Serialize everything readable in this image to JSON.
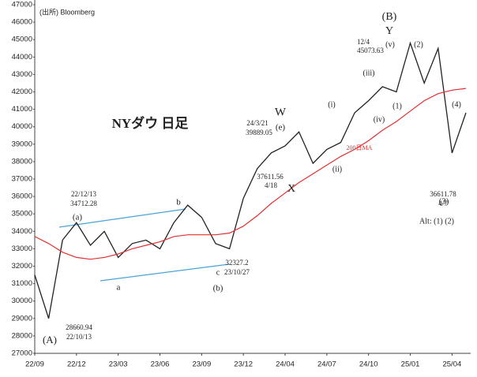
{
  "chart_data": {
    "type": "line",
    "title": "NYダウ 日足",
    "source": "(出所) Bloomberg",
    "categories": [
      "22/09",
      null,
      null,
      "22/12",
      null,
      null,
      "23/03",
      null,
      null,
      "23/06",
      null,
      null,
      "23/09",
      null,
      null,
      "23/12",
      null,
      null,
      "24/04",
      null,
      null,
      "24/07",
      null,
      null,
      "24/10",
      null,
      null,
      "25/01",
      null,
      null,
      "25/04",
      null
    ],
    "series": [
      {
        "name": "NYダウ",
        "color": "#222222",
        "values": [
          31500,
          29000,
          33500,
          34500,
          33200,
          34000,
          32500,
          33300,
          33500,
          33000,
          34500,
          35500,
          34800,
          33300,
          33000,
          35900,
          37600,
          38500,
          38900,
          39700,
          37900,
          38700,
          39100,
          40800,
          41500,
          42300,
          42000,
          44800,
          42500,
          44500,
          38500,
          40800
        ]
      },
      {
        "name": "200日MA",
        "color": "#e03030",
        "values": [
          33700,
          33300,
          32800,
          32500,
          32400,
          32500,
          32700,
          33000,
          33200,
          33400,
          33700,
          33800,
          33800,
          33800,
          33900,
          34300,
          34900,
          35600,
          36200,
          36800,
          37300,
          37800,
          38300,
          38700,
          39200,
          39800,
          40300,
          40900,
          41500,
          41900,
          42100,
          42200
        ]
      }
    ],
    "ylim": [
      27000,
      47000
    ],
    "yticks": [
      27000,
      28000,
      29000,
      30000,
      31000,
      32000,
      33000,
      34000,
      35000,
      36000,
      37000,
      38000,
      39000,
      40000,
      41000,
      42000,
      43000,
      44000,
      45000,
      46000,
      47000
    ],
    "annotations": [
      "(B)",
      "Y",
      "(v)",
      "12/4",
      "45073.63",
      "(2)",
      "(iii)",
      "(i)",
      "(1)",
      "(iv)",
      "(4)",
      "W",
      "(e)",
      "24/3/21",
      "39889.05",
      "(ii)",
      "37611.56",
      "4/18",
      "X",
      "b",
      "22/12/13",
      "34712.28",
      "(a)",
      "36611.78",
      "4/7",
      "(3)",
      "Alt: (1) (2)",
      "a",
      "32327.2",
      "23/10/27",
      "c",
      "(b)",
      "28660.94",
      "22/10/13",
      "(A)"
    ]
  }
}
